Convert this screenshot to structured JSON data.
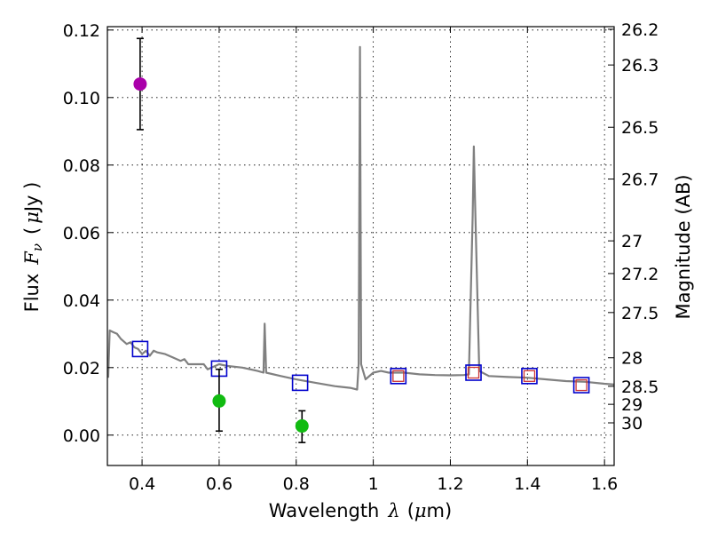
{
  "chart_data": {
    "type": "scatter",
    "title": "",
    "xlabel_text": "Wavelength",
    "xlabel_symbol": "λ",
    "xlabel_unit_open": "(",
    "xlabel_unit_mu": "μ",
    "xlabel_unit_rest": "m)",
    "ylabel_text": "Flux",
    "ylabel_symbol": "F",
    "ylabel_sub": "ν",
    "ylabel_unit_open": "(",
    "ylabel_unit_mu": "μ",
    "ylabel_unit_rest": "Jy )",
    "y2label": "Magnitude (AB)",
    "xlim": [
      0.31,
      1.625
    ],
    "ylim": [
      -0.009,
      0.121
    ],
    "grid": true,
    "x_ticks": [
      "0.4",
      "0.6",
      "0.8",
      "1",
      "1.2",
      "1.4",
      "1.6"
    ],
    "y_ticks": [
      "0.00",
      "0.02",
      "0.04",
      "0.06",
      "0.08",
      "0.10",
      "0.12"
    ],
    "mag_ticks": [
      "26.2",
      "26.3",
      "26.5",
      "26.7",
      "27",
      "27.2",
      "27.5",
      "28",
      "28.5",
      "29",
      "30"
    ],
    "spectrum": {
      "name": "model spectrum",
      "color": "#808080",
      "points": [
        [
          0.312,
          0.017
        ],
        [
          0.316,
          0.031
        ],
        [
          0.325,
          0.0305
        ],
        [
          0.335,
          0.03
        ],
        [
          0.345,
          0.0285
        ],
        [
          0.36,
          0.027
        ],
        [
          0.37,
          0.0275
        ],
        [
          0.38,
          0.026
        ],
        [
          0.39,
          0.0255
        ],
        [
          0.4,
          0.024
        ],
        [
          0.41,
          0.025
        ],
        [
          0.42,
          0.0235
        ],
        [
          0.43,
          0.025
        ],
        [
          0.44,
          0.0245
        ],
        [
          0.46,
          0.024
        ],
        [
          0.48,
          0.023
        ],
        [
          0.5,
          0.022
        ],
        [
          0.51,
          0.0225
        ],
        [
          0.52,
          0.021
        ],
        [
          0.54,
          0.021
        ],
        [
          0.56,
          0.021
        ],
        [
          0.57,
          0.0195
        ],
        [
          0.6,
          0.021
        ],
        [
          0.62,
          0.0205
        ],
        [
          0.66,
          0.02
        ],
        [
          0.7,
          0.019
        ],
        [
          0.715,
          0.0185
        ],
        [
          0.718,
          0.033
        ],
        [
          0.722,
          0.0185
        ],
        [
          0.76,
          0.0175
        ],
        [
          0.8,
          0.0165
        ],
        [
          0.85,
          0.0155
        ],
        [
          0.9,
          0.0145
        ],
        [
          0.94,
          0.014
        ],
        [
          0.958,
          0.0135
        ],
        [
          0.962,
          0.021
        ],
        [
          0.9655,
          0.115
        ],
        [
          0.9685,
          0.021
        ],
        [
          0.98,
          0.0165
        ],
        [
          1.0,
          0.0185
        ],
        [
          1.02,
          0.019
        ],
        [
          1.04,
          0.0185
        ],
        [
          1.08,
          0.0185
        ],
        [
          1.12,
          0.018
        ],
        [
          1.16,
          0.0178
        ],
        [
          1.2,
          0.0177
        ],
        [
          1.235,
          0.0178
        ],
        [
          1.248,
          0.018
        ],
        [
          1.258,
          0.065
        ],
        [
          1.261,
          0.0855
        ],
        [
          1.264,
          0.07
        ],
        [
          1.275,
          0.019
        ],
        [
          1.3,
          0.0175
        ],
        [
          1.35,
          0.0172
        ],
        [
          1.4,
          0.017
        ],
        [
          1.45,
          0.0165
        ],
        [
          1.5,
          0.016
        ],
        [
          1.55,
          0.0158
        ],
        [
          1.6,
          0.0152
        ],
        [
          1.625,
          0.015
        ]
      ]
    },
    "photometry_blue_squares": {
      "name": "model band flux",
      "color": "#0000cc",
      "x": [
        0.395,
        0.6,
        0.81,
        1.065,
        1.26,
        1.405,
        1.54
      ],
      "y": [
        0.0255,
        0.0197,
        0.0155,
        0.0175,
        0.0185,
        0.0175,
        0.0148
      ]
    },
    "photometry_red_squares": {
      "name": "observed band flux",
      "color": "#cc3333",
      "x": [
        1.065,
        1.26,
        1.405,
        1.54
      ],
      "y": [
        0.0175,
        0.0185,
        0.0175,
        0.0148
      ]
    },
    "detections": [
      {
        "name": "magenta point",
        "color": "#aa00aa",
        "x": 0.395,
        "y": 0.104,
        "err_low": 0.0905,
        "err_high": 0.1175
      },
      {
        "name": "green point 1",
        "color": "#11bb11",
        "x": 0.6,
        "y": 0.0101,
        "err_low": 0.0012,
        "err_high": 0.0195
      },
      {
        "name": "green point 2",
        "color": "#11bb11",
        "x": 0.815,
        "y": 0.0027,
        "err_low": -0.0022,
        "err_high": 0.0072
      }
    ]
  }
}
